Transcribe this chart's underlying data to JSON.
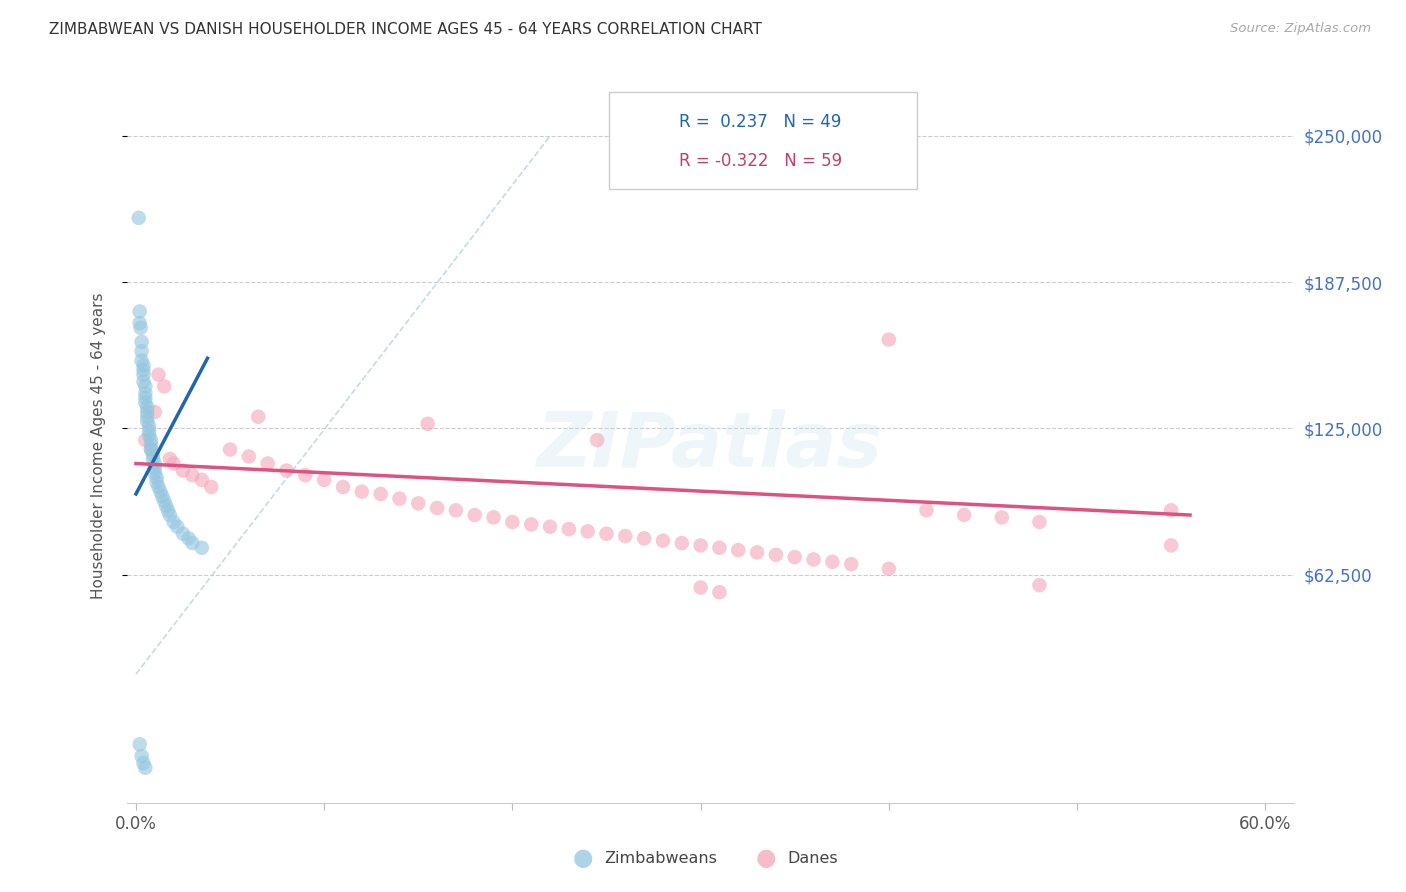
{
  "title": "ZIMBABWEAN VS DANISH HOUSEHOLDER INCOME AGES 45 - 64 YEARS CORRELATION CHART",
  "source": "Source: ZipAtlas.com",
  "ylabel": "Householder Income Ages 45 - 64 years",
  "xlim": [
    -0.005,
    0.615
  ],
  "ylim": [
    -35000,
    270000
  ],
  "yticks": [
    62500,
    125000,
    187500,
    250000
  ],
  "ytick_labels": [
    "$62,500",
    "$125,000",
    "$187,500",
    "$250,000"
  ],
  "legend_r_blue": "0.237",
  "legend_n_blue": "49",
  "legend_r_pink": "-0.322",
  "legend_n_pink": "59",
  "blue_color": "#92c5de",
  "pink_color": "#f4a6b8",
  "blue_line_color": "#2166ac",
  "pink_line_color": "#e05080",
  "ref_line_color": "#b8d4ea",
  "zim_x": [
    0.0015,
    0.002,
    0.002,
    0.0025,
    0.003,
    0.003,
    0.003,
    0.004,
    0.004,
    0.004,
    0.004,
    0.005,
    0.005,
    0.005,
    0.005,
    0.006,
    0.006,
    0.006,
    0.006,
    0.007,
    0.007,
    0.007,
    0.008,
    0.008,
    0.008,
    0.009,
    0.009,
    0.01,
    0.01,
    0.01,
    0.011,
    0.011,
    0.012,
    0.013,
    0.014,
    0.015,
    0.016,
    0.017,
    0.018,
    0.02,
    0.022,
    0.025,
    0.028,
    0.03,
    0.035,
    0.002,
    0.003,
    0.004,
    0.005
  ],
  "zim_y": [
    215000,
    175000,
    170000,
    168000,
    162000,
    158000,
    154000,
    152000,
    150000,
    148000,
    145000,
    143000,
    140000,
    138000,
    136000,
    134000,
    132000,
    130000,
    128000,
    126000,
    124000,
    122000,
    120000,
    118000,
    116000,
    114000,
    112000,
    110000,
    108000,
    106000,
    104000,
    102000,
    100000,
    98000,
    96000,
    94000,
    92000,
    90000,
    88000,
    85000,
    83000,
    80000,
    78000,
    76000,
    74000,
    -10000,
    -15000,
    -18000,
    -20000
  ],
  "dan_x": [
    0.005,
    0.008,
    0.01,
    0.012,
    0.015,
    0.018,
    0.02,
    0.025,
    0.03,
    0.035,
    0.04,
    0.05,
    0.06,
    0.065,
    0.07,
    0.08,
    0.09,
    0.1,
    0.11,
    0.12,
    0.13,
    0.14,
    0.15,
    0.155,
    0.16,
    0.17,
    0.18,
    0.19,
    0.2,
    0.21,
    0.22,
    0.23,
    0.24,
    0.245,
    0.25,
    0.26,
    0.27,
    0.28,
    0.29,
    0.3,
    0.31,
    0.32,
    0.33,
    0.34,
    0.35,
    0.36,
    0.37,
    0.38,
    0.4,
    0.42,
    0.44,
    0.46,
    0.48,
    0.3,
    0.31,
    0.55,
    0.4,
    0.55,
    0.48
  ],
  "dan_y": [
    120000,
    116000,
    132000,
    148000,
    143000,
    112000,
    110000,
    107000,
    105000,
    103000,
    100000,
    116000,
    113000,
    130000,
    110000,
    107000,
    105000,
    103000,
    100000,
    98000,
    97000,
    95000,
    93000,
    127000,
    91000,
    90000,
    88000,
    87000,
    85000,
    84000,
    83000,
    82000,
    81000,
    120000,
    80000,
    79000,
    78000,
    77000,
    76000,
    75000,
    74000,
    73000,
    72000,
    71000,
    70000,
    69000,
    68000,
    67000,
    65000,
    90000,
    88000,
    87000,
    85000,
    57000,
    55000,
    90000,
    163000,
    75000,
    58000
  ]
}
